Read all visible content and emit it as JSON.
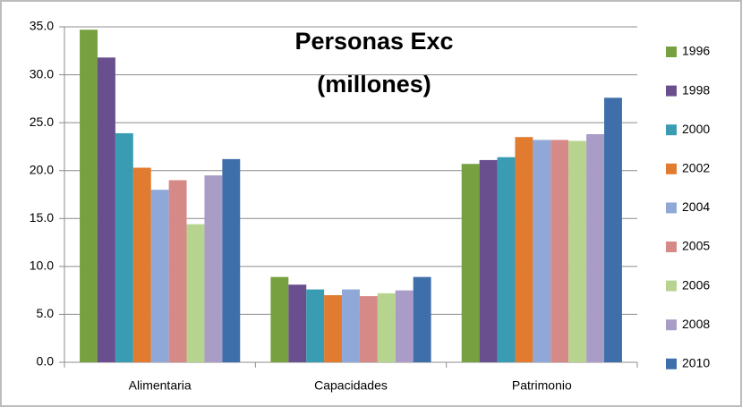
{
  "chart_data": {
    "type": "bar",
    "title": [
      "Personas Exc",
      "(millones)"
    ],
    "categories": [
      "Alimentaria",
      "Capacidades",
      "Patrimonio"
    ],
    "series": [
      {
        "name": "1996",
        "color": "#77a040",
        "values": [
          34.7,
          8.9,
          20.7
        ]
      },
      {
        "name": "1998",
        "color": "#6a4f8e",
        "values": [
          31.8,
          8.1,
          21.1
        ]
      },
      {
        "name": "2000",
        "color": "#3a9cb3",
        "values": [
          23.9,
          7.6,
          21.4
        ]
      },
      {
        "name": "2002",
        "color": "#e07b2f",
        "values": [
          20.3,
          7.0,
          23.5
        ]
      },
      {
        "name": "2004",
        "color": "#8fa8d8",
        "values": [
          18.0,
          7.6,
          23.2
        ]
      },
      {
        "name": "2005",
        "color": "#d68a88",
        "values": [
          19.0,
          6.9,
          23.2
        ]
      },
      {
        "name": "2006",
        "color": "#b6d48f",
        "values": [
          14.4,
          7.2,
          23.1
        ]
      },
      {
        "name": "2008",
        "color": "#a99cc6",
        "values": [
          19.5,
          7.5,
          23.8
        ]
      },
      {
        "name": "2010",
        "color": "#3f6faa",
        "values": [
          21.2,
          8.9,
          27.6
        ]
      }
    ],
    "ylim": [
      0,
      35
    ],
    "yticks": [
      {
        "value": 0,
        "label": "0.0"
      },
      {
        "value": 5,
        "label": "5.0"
      },
      {
        "value": 10,
        "label": "10.0"
      },
      {
        "value": 15,
        "label": "15.0"
      },
      {
        "value": 20,
        "label": "20.0"
      },
      {
        "value": 25,
        "label": "25.0"
      },
      {
        "value": 30,
        "label": "30.0"
      },
      {
        "value": 35,
        "label": "35.0"
      }
    ],
    "grid": true,
    "legend": "right"
  }
}
